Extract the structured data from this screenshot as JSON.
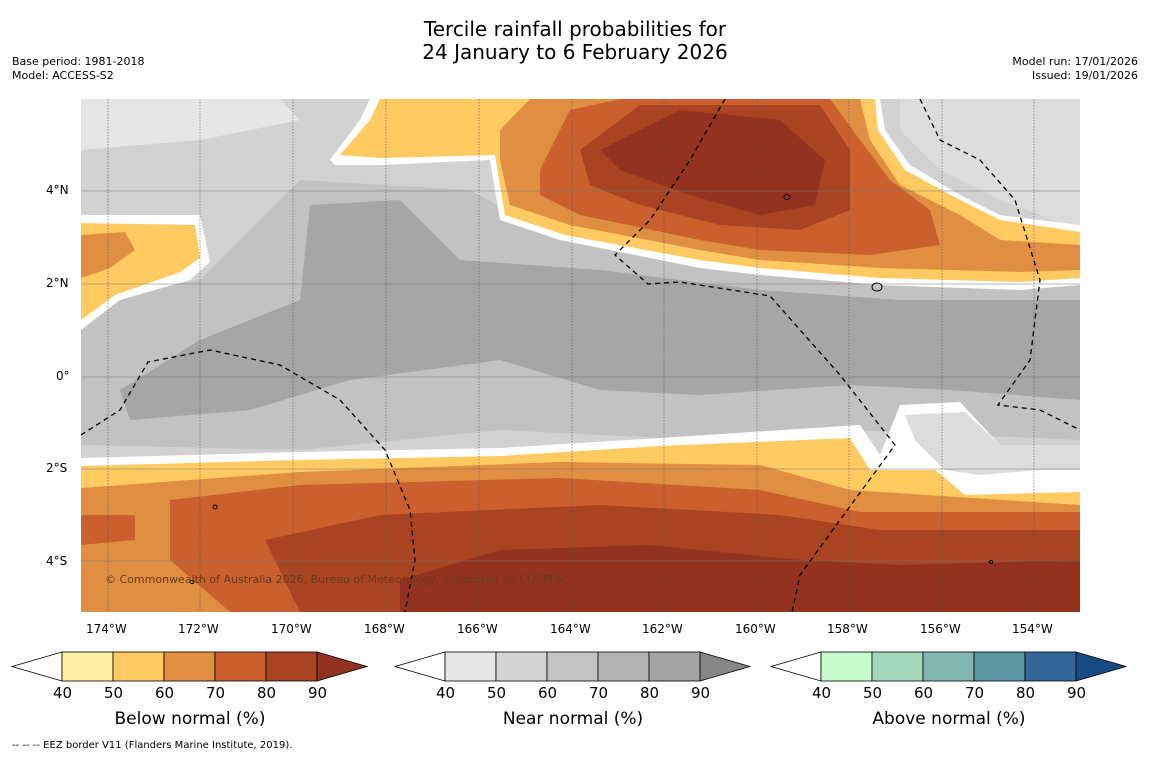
{
  "title": {
    "line1": "Tercile rainfall probabilities for",
    "line2": "24 January to 6 February 2026"
  },
  "meta": {
    "base_period": "Base period: 1981-2018",
    "model": "Model: ACCESS-S2",
    "model_run": "Model run: 17/01/2026",
    "issued": "Issued: 19/01/2026"
  },
  "map": {
    "lat_labels": [
      "4°N",
      "2°N",
      "0°",
      "2°S",
      "4°S"
    ],
    "lon_labels": [
      "174°W",
      "172°W",
      "170°W",
      "168°W",
      "166°W",
      "164°W",
      "162°W",
      "160°W",
      "158°W",
      "156°W",
      "154°W"
    ],
    "copyright": "© Commonwealth of Australia 2026, Bureau of Meteorology, supported by COSPPac",
    "colors": {
      "gray_light": "#e6e6e6",
      "gray_mid": "#d2d2d2",
      "gray_3": "#c2c2c2",
      "gray_dark": "#a6a6a6",
      "brown_1": "#ffeea3",
      "brown_2": "#ffca61",
      "brown_3": "#e08f42",
      "brown_4": "#c9602e",
      "brown_5": "#a84422",
      "brown_6": "#93331f"
    }
  },
  "colorbars": [
    {
      "title": "Below normal (%)",
      "ticks": [
        "40",
        "50",
        "60",
        "70",
        "80",
        "90"
      ],
      "colors": [
        "#ffeea3",
        "#ffca61",
        "#e08f42",
        "#c9602e",
        "#a84422",
        "#93331f"
      ]
    },
    {
      "title": "Near normal (%)",
      "ticks": [
        "40",
        "50",
        "60",
        "70",
        "80",
        "90"
      ],
      "colors": [
        "#e6e6e6",
        "#d4d4d4",
        "#c4c4c4",
        "#b4b4b4",
        "#a4a4a4",
        "#868686"
      ]
    },
    {
      "title": "Above normal (%)",
      "ticks": [
        "40",
        "50",
        "60",
        "70",
        "80",
        "90"
      ],
      "colors": [
        "#c8fcce",
        "#a4d8bd",
        "#84b7b0",
        "#5c94a2",
        "#336697",
        "#174b82"
      ]
    }
  ],
  "footnote": "--  --  -- EEZ border V11 (Flanders Marine Institute, 2019)."
}
